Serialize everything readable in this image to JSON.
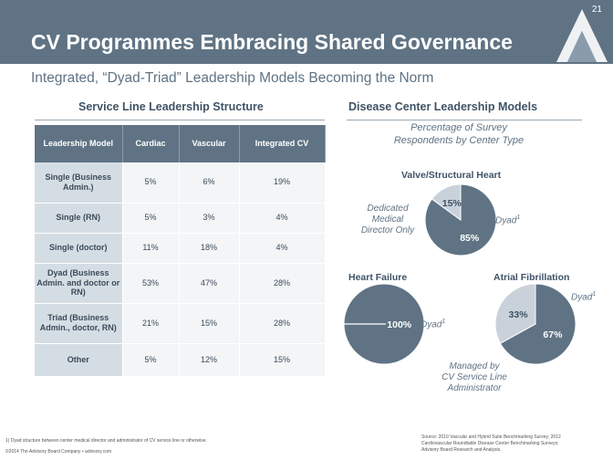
{
  "slide": {
    "number": "21",
    "title": "CV Programmes Embracing Shared Governance",
    "subtitle": "Integrated, “Dyad-Triad” Leadership Models Becoming the Norm"
  },
  "colors": {
    "brand": "#5f7384",
    "pie_dark": "#5f7384",
    "pie_light": "#c9d2da"
  },
  "left_section": {
    "title": "Service Line Leadership Structure"
  },
  "right_section": {
    "title": "Disease Center Leadership Models",
    "caption_line1": "Percentage of Survey",
    "caption_line2": "Respondents  by Center Type"
  },
  "chart_data": [
    {
      "type": "table",
      "title": "Service Line Leadership Structure",
      "headers": [
        "Leadership Model",
        "Cardiac",
        "Vascular",
        "Integrated CV"
      ],
      "rows": [
        [
          "Single (Business Admin.)",
          "5%",
          "6%",
          "19%"
        ],
        [
          "Single (RN)",
          "5%",
          "3%",
          "4%"
        ],
        [
          "Single (doctor)",
          "11%",
          "18%",
          "4%"
        ],
        [
          "Dyad (Business Admin. and doctor or RN)",
          "53%",
          "47%",
          "28%"
        ],
        [
          "Triad (Business Admin., doctor, RN)",
          "21%",
          "15%",
          "28%"
        ],
        [
          "Other",
          "5%",
          "12%",
          "15%"
        ]
      ]
    },
    {
      "type": "pie",
      "title": "Valve/Structural Heart",
      "slices": [
        {
          "label": "85%",
          "value": 85,
          "legend": "Dyad",
          "legend_sup": "1",
          "color": "#5f7384"
        },
        {
          "label": "15%",
          "value": 15,
          "legend_lines": [
            "Dedicated",
            "Medical",
            "Director Only"
          ],
          "color": "#c9d2da"
        }
      ]
    },
    {
      "type": "pie",
      "title": "Heart Failure",
      "slices": [
        {
          "label": "100%",
          "value": 100,
          "legend": "Dyad",
          "legend_sup": "1",
          "color": "#5f7384"
        }
      ]
    },
    {
      "type": "pie",
      "title": "Atrial Fibrillation",
      "slices": [
        {
          "label": "67%",
          "value": 67,
          "legend": "Dyad",
          "legend_sup": "1",
          "color": "#5f7384"
        },
        {
          "label": "33%",
          "value": 33,
          "legend_lines": [
            "Managed by",
            "CV Service Line",
            "Administrator"
          ],
          "color": "#c9d2da"
        }
      ]
    }
  ],
  "footer": {
    "footnote": "1)  Dyad structure between center medical director and administrator of CV service line or otherwise.",
    "copyright": "©2014 The Advisory Board Company • advisory.com",
    "source_line1": "Source: 2010 Vascular and Hybrid Suite Benchmarking Survey; 2012",
    "source_line2": "Cardiovascular Roundtable Disease Center Benchmarking Surveys;",
    "source_line3": "Advisory Board Research and Analysis."
  }
}
